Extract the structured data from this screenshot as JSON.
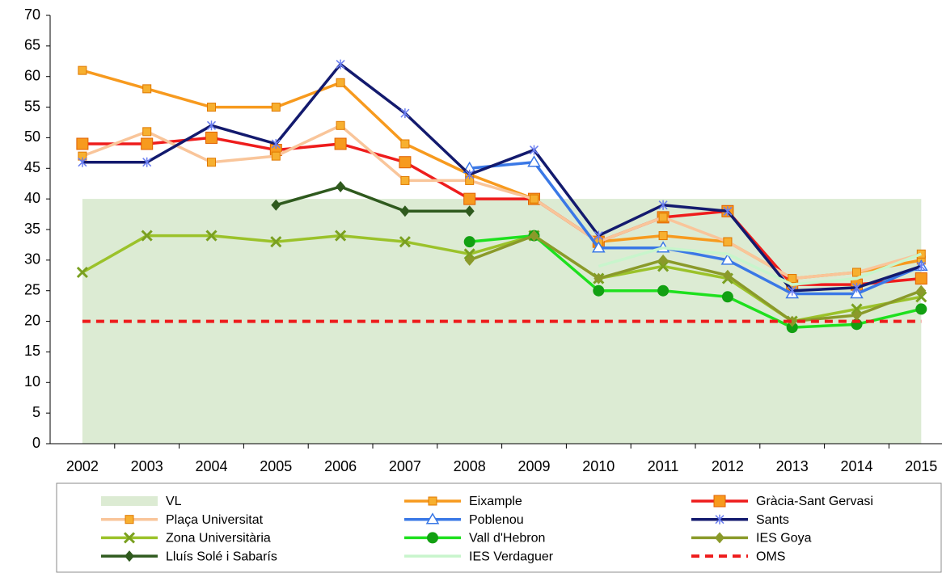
{
  "chart_data": {
    "type": "line",
    "categories": [
      "2002",
      "2003",
      "2004",
      "2005",
      "2006",
      "2007",
      "2008",
      "2009",
      "2010",
      "2011",
      "2012",
      "2013",
      "2014",
      "2015"
    ],
    "ylim": [
      0,
      70
    ],
    "yticks": [
      0,
      5,
      10,
      15,
      20,
      25,
      30,
      35,
      40,
      45,
      50,
      55,
      60,
      65,
      70
    ],
    "series": [
      {
        "name": "VL",
        "color": "#dcebd3",
        "style": "area",
        "values": [
          40,
          40,
          40,
          40,
          40,
          40,
          40,
          40,
          40,
          40,
          40,
          40,
          40,
          40
        ]
      },
      {
        "name": "Eixample",
        "color": "#f79a1e",
        "marker": "square",
        "values": [
          61,
          58,
          55,
          55,
          59,
          49,
          44,
          40,
          33,
          34,
          33,
          27,
          28,
          30
        ]
      },
      {
        "name": "Gràcia-Sant Gervasi",
        "color": "#ee1c1c",
        "marker": "bigsquare",
        "values": [
          49,
          49,
          50,
          48,
          49,
          46,
          40,
          40,
          33,
          37,
          38,
          26,
          26,
          27
        ]
      },
      {
        "name": "Plaça Universitat",
        "color": "#f9c59a",
        "marker": "square",
        "values": [
          47,
          51,
          46,
          47,
          52,
          43,
          43,
          40,
          33,
          37,
          33,
          27,
          28,
          31
        ]
      },
      {
        "name": "Poblenou",
        "color": "#3a78e6",
        "marker": "triangle",
        "values": [
          null,
          null,
          null,
          null,
          null,
          null,
          45,
          46,
          32,
          32,
          30,
          24.5,
          24.5,
          29
        ]
      },
      {
        "name": "Sants",
        "color": "#131a6e",
        "marker": "star",
        "values": [
          46,
          46,
          52,
          49,
          62,
          54,
          44,
          48,
          34,
          39,
          38,
          25,
          25.5,
          29
        ]
      },
      {
        "name": "Zona Universitària",
        "color": "#9bc22a",
        "marker": "x",
        "values": [
          28,
          34,
          34,
          33,
          34,
          33,
          31,
          34,
          27,
          29,
          27,
          20,
          22,
          24
        ]
      },
      {
        "name": "Vall d'Hebron",
        "color": "#1ee01e",
        "marker": "circle",
        "values": [
          null,
          null,
          null,
          null,
          null,
          null,
          33,
          34,
          25,
          25,
          24,
          19,
          19.5,
          22
        ]
      },
      {
        "name": "IES Goya",
        "color": "#8a9a2a",
        "marker": "diamond",
        "values": [
          null,
          null,
          null,
          null,
          null,
          null,
          30,
          34,
          27,
          30,
          27.5,
          20,
          21,
          25
        ]
      },
      {
        "name": "Lluís Solé i Sabarís",
        "color": "#2f5a1e",
        "marker": "diamond",
        "values": [
          null,
          null,
          null,
          39,
          42,
          38,
          38,
          null,
          null,
          null,
          null,
          null,
          null,
          null
        ]
      },
      {
        "name": "IES Verdaguer",
        "color": "#c8f5cc",
        "marker": "none",
        "values": [
          null,
          null,
          null,
          null,
          null,
          null,
          null,
          null,
          29,
          32,
          31,
          26,
          27,
          31
        ]
      },
      {
        "name": "OMS",
        "color": "#ee1c1c",
        "style": "dashed",
        "values": [
          20,
          20,
          20,
          20,
          20,
          20,
          20,
          20,
          20,
          20,
          20,
          20,
          20,
          20
        ]
      }
    ]
  }
}
